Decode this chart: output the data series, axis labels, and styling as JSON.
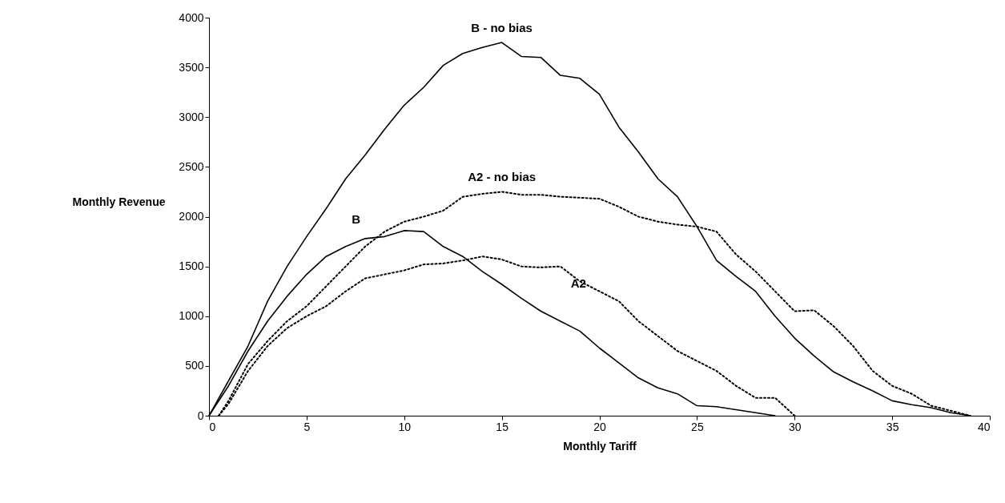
{
  "chart_data": {
    "type": "line",
    "xlabel": "Monthly Tariff",
    "ylabel": "Monthly Revenue",
    "x": [
      0,
      1,
      2,
      3,
      4,
      5,
      6,
      7,
      8,
      9,
      10,
      11,
      12,
      13,
      14,
      15,
      16,
      17,
      18,
      19,
      20,
      21,
      22,
      23,
      24,
      25,
      26,
      27,
      28,
      29,
      30,
      31,
      32,
      33,
      34,
      35,
      36,
      37,
      38,
      39
    ],
    "series": [
      {
        "name": "B - no bias",
        "color": "#000000",
        "line_style": "solid",
        "values": [
          0,
          350,
          700,
          1150,
          1500,
          1800,
          2080,
          2380,
          2620,
          2880,
          3120,
          3300,
          3520,
          3640,
          3700,
          3750,
          3610,
          3600,
          3420,
          3390,
          3230,
          2900,
          2650,
          2380,
          2200,
          1900,
          1560,
          1400,
          1250,
          1000,
          780,
          600,
          440,
          340,
          250,
          150,
          110,
          80,
          30,
          0
        ]
      },
      {
        "name": "A2 - no bias",
        "color": "#000000",
        "line_style": "dotted",
        "x": [
          0.5,
          1,
          2,
          3,
          4,
          5,
          6,
          7,
          8,
          9,
          10,
          11,
          12,
          13,
          14,
          15,
          16,
          17,
          18,
          19,
          20,
          21,
          22,
          23,
          24,
          25,
          26,
          27,
          28,
          29,
          30,
          31,
          32,
          33,
          34,
          35,
          36,
          37,
          38,
          39
        ],
        "values": [
          0,
          150,
          520,
          750,
          950,
          1100,
          1300,
          1500,
          1700,
          1850,
          1950,
          2000,
          2060,
          2200,
          2230,
          2250,
          2220,
          2220,
          2200,
          2190,
          2180,
          2100,
          2000,
          1950,
          1920,
          1900,
          1850,
          1620,
          1450,
          1250,
          1050,
          1060,
          900,
          700,
          450,
          300,
          220,
          100,
          50,
          0
        ]
      },
      {
        "name": "B",
        "color": "#000000",
        "line_style": "solid",
        "x": [
          0,
          1,
          2,
          3,
          4,
          5,
          6,
          7,
          8,
          9,
          10,
          11,
          12,
          13,
          14,
          15,
          16,
          17,
          18,
          19,
          20,
          21,
          22,
          23,
          24,
          25,
          26,
          27,
          28,
          29
        ],
        "values": [
          0,
          300,
          650,
          950,
          1200,
          1420,
          1600,
          1700,
          1780,
          1800,
          1860,
          1850,
          1700,
          1600,
          1450,
          1320,
          1180,
          1050,
          950,
          850,
          680,
          530,
          380,
          280,
          220,
          100,
          90,
          60,
          30,
          0
        ]
      },
      {
        "name": "A2",
        "color": "#000000",
        "line_style": "dotted",
        "x": [
          0.5,
          1,
          2,
          3,
          4,
          5,
          6,
          7,
          8,
          9,
          10,
          11,
          12,
          13,
          14,
          15,
          16,
          17,
          18,
          19,
          20,
          21,
          22,
          23,
          24,
          25,
          26,
          27,
          28,
          29,
          30
        ],
        "values": [
          0,
          120,
          450,
          700,
          880,
          1000,
          1100,
          1250,
          1380,
          1420,
          1460,
          1520,
          1530,
          1560,
          1600,
          1570,
          1500,
          1490,
          1500,
          1350,
          1250,
          1150,
          950,
          800,
          650,
          550,
          450,
          300,
          180,
          180,
          0
        ]
      }
    ],
    "xlim": [
      0,
      40
    ],
    "xticks": [
      0,
      5,
      10,
      15,
      20,
      25,
      30,
      35,
      40
    ],
    "ylim": [
      0,
      4000
    ],
    "yticks": [
      0,
      500,
      1000,
      1500,
      2000,
      2500,
      3000,
      3500,
      4000
    ],
    "grid": false,
    "legend": false
  }
}
